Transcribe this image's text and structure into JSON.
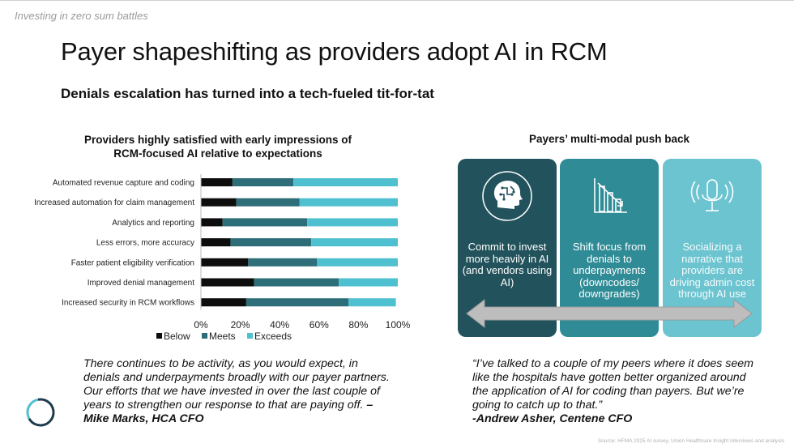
{
  "header": {
    "kicker": "Investing in zero sum battles",
    "title": "Payer shapeshifting as providers adopt AI in RCM",
    "subtitle": "Denials escalation has turned into a tech-fueled tit-for-tat"
  },
  "chart_data": {
    "type": "bar",
    "orientation": "horizontal",
    "stacked": true,
    "title_line1": "Providers highly satisfied with early impressions of",
    "title_line2": "RCM-focused AI relative to expectations",
    "categories": [
      "Automated revenue capture and coding",
      "Increased automation for claim management",
      "Analytics and reporting",
      "Less errors, more accuracy",
      "Faster patient eligibility verification",
      "Improved denial management",
      "Increased security in RCM workflows"
    ],
    "series": [
      {
        "name": "Below",
        "color": "#0d0d0d",
        "values": [
          16,
          18,
          11,
          15,
          24,
          27,
          23
        ]
      },
      {
        "name": "Meets",
        "color": "#2d6e78",
        "values": [
          31,
          32,
          43,
          41,
          35,
          43,
          52
        ]
      },
      {
        "name": "Exceeds",
        "color": "#4fc0cf",
        "values": [
          53,
          50,
          46,
          44,
          41,
          30,
          24
        ]
      }
    ],
    "xlim": [
      0,
      100
    ],
    "x_ticks": [
      "0%",
      "20%",
      "40%",
      "60%",
      "80%",
      "100%"
    ],
    "grid": false,
    "legend_position": "bottom"
  },
  "pushback": {
    "title": "Payers’ multi-modal push back",
    "cards": [
      {
        "icon": "brain-head-icon",
        "text": "Commit to invest more heavily in AI (and vendors using AI)",
        "color": "#22535c"
      },
      {
        "icon": "declining-chart-icon",
        "text": "Shift focus from denials to underpayments (downcodes/ downgrades)",
        "color": "#2f8b96"
      },
      {
        "icon": "microphone-icon",
        "text": "Socializing a narrative that providers are driving admin cost through AI use",
        "color": "#6cc4d0"
      }
    ]
  },
  "quotes": {
    "left_text": "There continues to be activity, as you would expect, in denials and underpayments broadly with our payer partners. Our efforts that we have invested in over the last couple of years to strengthen our response to that are paying off. ",
    "left_attr": "–Mike Marks, HCA CFO",
    "right_text": "“I’ve talked to a couple of my peers where it does seem like the hospitals have gotten better organized around the application of AI for coding than payers. But we’re going to catch up to that.”",
    "right_attr": "-Andrew Asher, Centene CFO"
  },
  "footer": {
    "source": "Source: HFMA 2025 AI survey, Union Healthcare Insight interviews and analysis"
  }
}
